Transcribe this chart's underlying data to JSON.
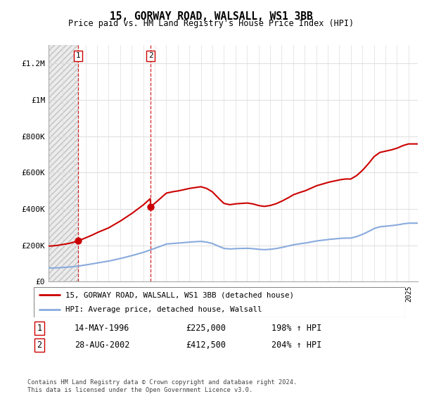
{
  "title": "15, GORWAY ROAD, WALSALL, WS1 3BB",
  "subtitle": "Price paid vs. HM Land Registry's House Price Index (HPI)",
  "hpi_years": [
    1994.0,
    1994.5,
    1995.0,
    1995.5,
    1996.0,
    1996.5,
    1997.0,
    1997.5,
    1998.0,
    1998.5,
    1999.0,
    1999.5,
    2000.0,
    2000.5,
    2001.0,
    2001.5,
    2002.0,
    2002.5,
    2003.0,
    2003.5,
    2004.0,
    2004.5,
    2005.0,
    2005.5,
    2006.0,
    2006.5,
    2007.0,
    2007.5,
    2008.0,
    2008.5,
    2009.0,
    2009.5,
    2010.0,
    2010.5,
    2011.0,
    2011.5,
    2012.0,
    2012.5,
    2013.0,
    2013.5,
    2014.0,
    2014.5,
    2015.0,
    2015.5,
    2016.0,
    2016.5,
    2017.0,
    2017.5,
    2018.0,
    2018.5,
    2019.0,
    2019.5,
    2020.0,
    2020.5,
    2021.0,
    2021.5,
    2022.0,
    2022.5,
    2023.0,
    2023.5,
    2024.0,
    2024.5,
    2025.0
  ],
  "hpi_values": [
    75000,
    76000,
    78000,
    80000,
    83000,
    87000,
    92000,
    97000,
    103000,
    108000,
    113000,
    120000,
    127000,
    135000,
    143000,
    152000,
    161000,
    172000,
    183000,
    195000,
    207000,
    210000,
    212000,
    215000,
    218000,
    220000,
    222000,
    218000,
    210000,
    196000,
    183000,
    180000,
    182000,
    183000,
    184000,
    182000,
    178000,
    176000,
    178000,
    182000,
    188000,
    195000,
    203000,
    208000,
    212000,
    218000,
    224000,
    228000,
    232000,
    235000,
    238000,
    240000,
    240000,
    248000,
    260000,
    275000,
    292000,
    302000,
    305000,
    308000,
    312000,
    318000,
    322000
  ],
  "sale1_year": 1996.37,
  "sale1_value": 225000,
  "sale2_year": 2002.65,
  "sale2_value": 412500,
  "sale1_date": "14-MAY-1996",
  "sale1_price": "£225,000",
  "sale1_hpi": "198% ↑ HPI",
  "sale2_date": "28-AUG-2002",
  "sale2_price": "£412,500",
  "sale2_hpi": "204% ↑ HPI",
  "hpi_color": "#88aadd",
  "price_color": "#cc0000",
  "legend1": "15, GORWAY ROAD, WALSALL, WS1 3BB (detached house)",
  "legend2": "HPI: Average price, detached house, Walsall",
  "footer": "Contains HM Land Registry data © Crown copyright and database right 2024.\nThis data is licensed under the Open Government Licence v3.0.",
  "ylim": [
    0,
    1300000
  ],
  "yticks": [
    0,
    200000,
    400000,
    600000,
    800000,
    1000000,
    1200000
  ],
  "ytick_labels": [
    "£0",
    "£200K",
    "£400K",
    "£600K",
    "£800K",
    "£1M",
    "£1.2M"
  ],
  "xmin": 1993.8,
  "xmax": 2025.8
}
